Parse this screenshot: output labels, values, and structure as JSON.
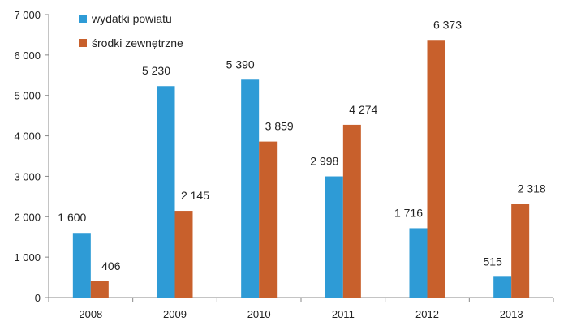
{
  "chart_data": {
    "type": "bar",
    "categories": [
      "2008",
      "2009",
      "2010",
      "2011",
      "2012",
      "2013"
    ],
    "series": [
      {
        "name": "wydatki powiatu",
        "color": "#2E9BD6",
        "values": [
          1600,
          5230,
          5390,
          2998,
          1716,
          515
        ],
        "labels": [
          "1 600",
          "5 230",
          "5 390",
          "2 998",
          "1 716",
          "515"
        ]
      },
      {
        "name": "środki zewnętrzne",
        "color": "#C8602C",
        "values": [
          406,
          2145,
          3859,
          4274,
          6373,
          2318
        ],
        "labels": [
          "406",
          "2 145",
          "3 859",
          "4 274",
          "6 373",
          "2 318"
        ]
      }
    ],
    "ylim": [
      0,
      7000
    ],
    "yticks": [
      0,
      1000,
      2000,
      3000,
      4000,
      5000,
      6000,
      7000
    ],
    "ytick_labels": [
      "0",
      "1 000",
      "2 000",
      "3 000",
      "4 000",
      "5 000",
      "6 000",
      "7 000"
    ],
    "title": "",
    "xlabel": "",
    "ylabel": "",
    "grid": false,
    "legend": "top-left"
  }
}
